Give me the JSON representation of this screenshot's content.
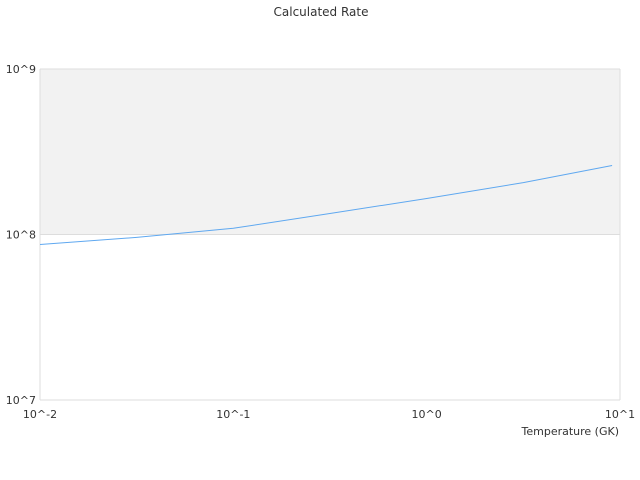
{
  "chart_data": {
    "type": "line",
    "title": "Calculated Rate",
    "xlabel": "Temperature (GK)",
    "ylabel": "",
    "x_scale": "log",
    "y_scale": "log",
    "xlim": [
      0.01,
      10
    ],
    "ylim": [
      10000000,
      1000000000
    ],
    "x_ticks": [
      0.01,
      0.1,
      1,
      10
    ],
    "x_tick_labels": [
      "10^-2",
      "10^-1",
      "10^0",
      "10^1"
    ],
    "y_ticks": [
      10000000,
      100000000,
      1000000000
    ],
    "y_tick_labels": [
      "10^7",
      "10^8",
      "10^9"
    ],
    "grid": true,
    "band_color": "#f2f2f2",
    "series": [
      {
        "color": "#5fa8f0",
        "x": [
          0.01,
          0.0316,
          0.1,
          0.316,
          1,
          3.16,
          9.1
        ],
        "y": [
          87000000,
          96000000,
          109000000,
          134000000,
          165000000,
          206000000,
          261000000
        ]
      }
    ]
  }
}
